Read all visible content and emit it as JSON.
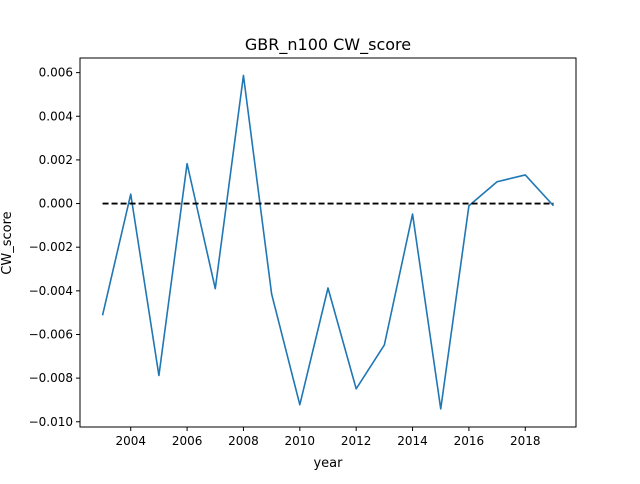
{
  "chart_data": {
    "type": "line",
    "title": "GBR_n100 CW_score",
    "xlabel": "year",
    "ylabel": "CW_score",
    "xlim": [
      2002.2,
      2019.8
    ],
    "ylim": [
      -0.01024,
      0.00667
    ],
    "x_ticks": [
      2004,
      2006,
      2008,
      2010,
      2012,
      2014,
      2016,
      2018
    ],
    "x_tick_labels": [
      "2004",
      "2006",
      "2008",
      "2010",
      "2012",
      "2014",
      "2016",
      "2018"
    ],
    "y_ticks": [
      0.006,
      0.004,
      0.002,
      0.0,
      -0.002,
      -0.004,
      -0.006,
      -0.008,
      -0.01
    ],
    "y_tick_labels": [
      "0.006",
      "0.004",
      "0.002",
      "0.000",
      "−0.002",
      "−0.004",
      "−0.006",
      "−0.008",
      "−0.010"
    ],
    "grid": false,
    "series": [
      {
        "color": "#1f77b4",
        "style": "solid",
        "x": [
          2003,
          2004,
          2005,
          2006,
          2007,
          2008,
          2009,
          2010,
          2011,
          2012,
          2013,
          2014,
          2015,
          2016,
          2017,
          2018,
          2019
        ],
        "y": [
          -0.00512,
          0.00043,
          -0.00788,
          0.00183,
          -0.0039,
          0.00587,
          -0.00415,
          -0.00922,
          -0.00387,
          -0.00849,
          -0.00648,
          -0.00048,
          -0.00941,
          -0.0001,
          0.001,
          0.00131,
          -0.0001
        ]
      },
      {
        "color": "#000000",
        "style": "dashed",
        "x": [
          2003,
          2019
        ],
        "y": [
          0.0,
          0.0
        ]
      }
    ]
  }
}
